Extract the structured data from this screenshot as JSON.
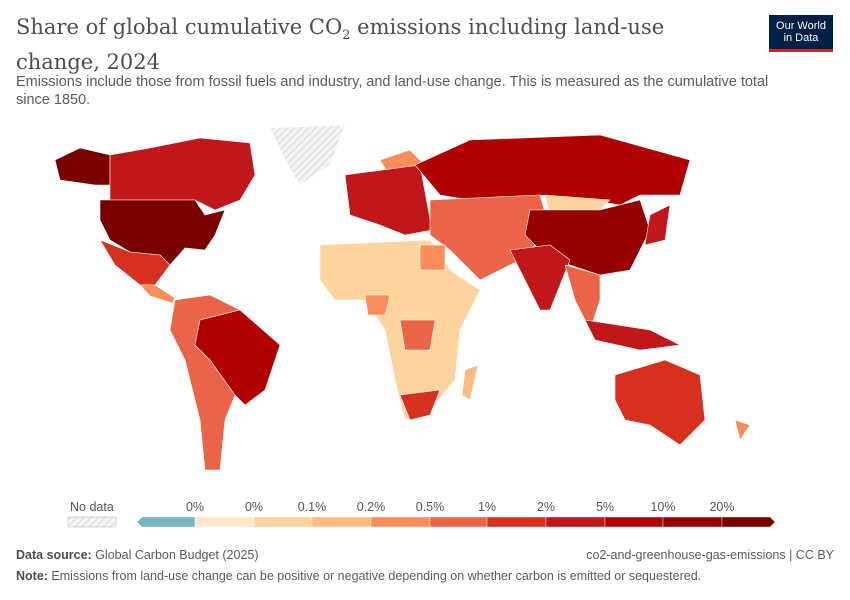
{
  "header": {
    "title_part1": "Share of global cumulative CO",
    "title_sub": "2",
    "title_part2": " emissions including land-use change, 2024",
    "subtitle": "Emissions include those from fossil fuels and industry, and land-use change. This is measured as the cumulative total since 1850.",
    "logo_line1": "Our World",
    "logo_line2": "in Data"
  },
  "legend": {
    "no_data_label": "No data",
    "tick_labels": [
      "0%",
      "0%",
      "0.1%",
      "0.2%",
      "0.5%",
      "1%",
      "2%",
      "5%",
      "10%",
      "20%"
    ],
    "bin_colors": [
      "#72b8c1",
      "#fee6c9",
      "#fdd49e",
      "#fdbb84",
      "#fc8d59",
      "#ec6447",
      "#d7301f",
      "#c1161a",
      "#b00000",
      "#960000",
      "#7a0000"
    ],
    "no_data_color": "#e6e6e6"
  },
  "map_bins": {
    "usa": 10,
    "alaska": 10,
    "canada": 7,
    "mexico": 6,
    "central_america": 4,
    "brazil": 8,
    "south_america_rest": 5,
    "europe": 7,
    "scandinavia": 4,
    "russia": 8,
    "middle_east": 5,
    "mongolia": 2,
    "china": 9,
    "india": 7,
    "se_asia": 5,
    "indonesia": 7,
    "japan": 7,
    "africa": 2,
    "egypt": 4,
    "nigeria": 4,
    "drc": 5,
    "south_africa": 6,
    "madagascar": 3,
    "australia": 6,
    "new_zealand": 4,
    "greenland": -1
  },
  "footer": {
    "source_label": "Data source:",
    "source": " Global Carbon Budget (2025)",
    "slug": "co2-and-greenhouse-gas-emissions | CC BY",
    "note_label": "Note:",
    "note": " Emissions from land-use change can be positive or negative depending on whether carbon is emitted or sequestered."
  }
}
